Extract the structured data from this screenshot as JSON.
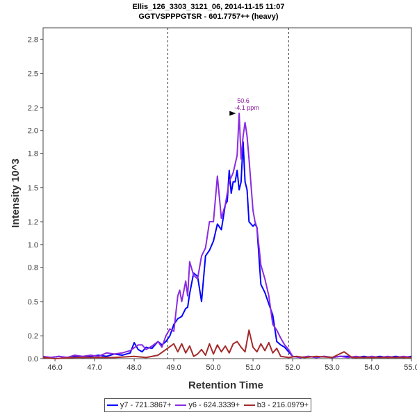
{
  "chart_data": {
    "type": "line",
    "title": "Ellis_126_3303_3121_06, 2014-11-15 11:07",
    "subtitle": "GGTVSPPPGTSR - 601.7757++ (heavy)",
    "xlabel": "Retention Time",
    "ylabel": "Intensity 10^3",
    "xlim": [
      45.7,
      55.0
    ],
    "ylim": [
      0,
      2.9
    ],
    "x_ticks": [
      "46.0",
      "47.0",
      "48.0",
      "49.0",
      "50.0",
      "51.0",
      "52.0",
      "53.0",
      "54.0",
      "55.0"
    ],
    "y_ticks": [
      "0.0",
      "0.2",
      "0.5",
      "0.8",
      "1.0",
      "1.2",
      "1.5",
      "1.8",
      "2.0",
      "2.2",
      "2.5",
      "2.8"
    ],
    "boundary_lines": [
      48.85,
      51.9
    ],
    "annotation": {
      "x": 50.6,
      "y": 2.15,
      "line1": "50.6",
      "line2": "-4.1 ppm"
    },
    "series": [
      {
        "name": "y7 - 721.3867+",
        "color": "#0000ff",
        "x": [
          45.7,
          45.9,
          46.1,
          46.3,
          46.5,
          46.7,
          46.9,
          47.1,
          47.3,
          47.5,
          47.7,
          47.9,
          48.0,
          48.1,
          48.2,
          48.3,
          48.45,
          48.6,
          48.7,
          48.8,
          48.9,
          49.0,
          49.1,
          49.2,
          49.3,
          49.35,
          49.4,
          49.5,
          49.6,
          49.7,
          49.8,
          49.9,
          50.0,
          50.1,
          50.2,
          50.3,
          50.35,
          50.4,
          50.45,
          50.5,
          50.55,
          50.6,
          50.65,
          50.7,
          50.75,
          50.8,
          50.85,
          50.9,
          51.0,
          51.05,
          51.1,
          51.2,
          51.3,
          51.4,
          51.5,
          51.6,
          51.7,
          51.8,
          51.9,
          52.0,
          52.2,
          52.4,
          52.6,
          52.8,
          53.0,
          53.2,
          53.4,
          53.6,
          53.8,
          54.0,
          54.2,
          54.4,
          54.6,
          54.8,
          55.0
        ],
        "values": [
          0.01,
          0.01,
          0.02,
          0.01,
          0.02,
          0.01,
          0.02,
          0.03,
          0.02,
          0.04,
          0.03,
          0.05,
          0.14,
          0.08,
          0.06,
          0.1,
          0.09,
          0.15,
          0.12,
          0.15,
          0.2,
          0.3,
          0.35,
          0.37,
          0.44,
          0.45,
          0.57,
          0.75,
          0.72,
          0.5,
          0.9,
          0.95,
          1.03,
          1.18,
          1.13,
          1.35,
          1.38,
          1.65,
          1.45,
          1.55,
          1.55,
          1.65,
          1.48,
          1.55,
          1.9,
          1.55,
          1.48,
          1.2,
          1.16,
          1.18,
          1.15,
          0.65,
          0.58,
          0.48,
          0.38,
          0.15,
          0.12,
          0.1,
          0.06,
          0.02,
          0.01,
          0.02,
          0.01,
          0.02,
          0.01,
          0.02,
          0.02,
          0.01,
          0.02,
          0.01,
          0.02,
          0.01,
          0.02,
          0.01,
          0.02
        ]
      },
      {
        "name": "y6 - 624.3339+",
        "color": "#8a2be2",
        "x": [
          45.7,
          45.9,
          46.1,
          46.3,
          46.5,
          46.7,
          46.9,
          47.1,
          47.3,
          47.5,
          47.7,
          47.9,
          48.1,
          48.2,
          48.3,
          48.45,
          48.6,
          48.7,
          48.8,
          48.9,
          49.0,
          49.1,
          49.15,
          49.2,
          49.3,
          49.35,
          49.4,
          49.5,
          49.6,
          49.7,
          49.8,
          49.9,
          50.0,
          50.1,
          50.2,
          50.3,
          50.4,
          50.5,
          50.6,
          50.65,
          50.7,
          50.75,
          50.8,
          50.85,
          50.9,
          51.0,
          51.05,
          51.1,
          51.2,
          51.3,
          51.4,
          51.5,
          51.6,
          51.7,
          51.8,
          51.9,
          52.0,
          52.2,
          52.4,
          52.6,
          52.8,
          53.0,
          53.2,
          53.4,
          53.6,
          53.8,
          54.0,
          54.2,
          54.4,
          54.6,
          54.8,
          55.0
        ],
        "values": [
          0.02,
          0.01,
          0.02,
          0.01,
          0.03,
          0.02,
          0.03,
          0.02,
          0.05,
          0.04,
          0.05,
          0.07,
          0.12,
          0.12,
          0.08,
          0.11,
          0.15,
          0.1,
          0.2,
          0.26,
          0.24,
          0.55,
          0.6,
          0.5,
          0.68,
          0.55,
          0.85,
          0.73,
          0.7,
          0.9,
          0.97,
          1.2,
          1.2,
          1.6,
          1.23,
          1.35,
          1.55,
          1.63,
          1.78,
          2.15,
          1.75,
          1.95,
          2.07,
          1.95,
          1.75,
          1.3,
          1.2,
          1.15,
          0.82,
          0.7,
          0.55,
          0.3,
          0.25,
          0.18,
          0.12,
          0.08,
          0.02,
          0.01,
          0.02,
          0.01,
          0.02,
          0.01,
          0.02,
          0.01,
          0.02,
          0.01,
          0.02,
          0.01,
          0.02,
          0.01,
          0.02,
          0.01
        ]
      },
      {
        "name": "b3 - 216.0979+",
        "color": "#a52a2a",
        "x": [
          45.7,
          46.0,
          46.5,
          47.0,
          47.5,
          48.0,
          48.3,
          48.6,
          48.8,
          49.0,
          49.1,
          49.2,
          49.3,
          49.4,
          49.5,
          49.6,
          49.7,
          49.8,
          49.9,
          50.0,
          50.1,
          50.2,
          50.3,
          50.4,
          50.5,
          50.6,
          50.7,
          50.8,
          50.9,
          51.0,
          51.1,
          51.2,
          51.3,
          51.4,
          51.5,
          51.6,
          51.7,
          51.9,
          52.1,
          52.3,
          52.6,
          53.0,
          53.3,
          53.5,
          54.0,
          54.5,
          55.0
        ],
        "values": [
          0.01,
          0.0,
          0.01,
          0.01,
          0.01,
          0.02,
          0.01,
          0.03,
          0.08,
          0.13,
          0.06,
          0.13,
          0.05,
          0.11,
          0.02,
          0.04,
          0.08,
          0.03,
          0.13,
          0.04,
          0.12,
          0.06,
          0.11,
          0.05,
          0.13,
          0.15,
          0.1,
          0.06,
          0.25,
          0.1,
          0.06,
          0.13,
          0.07,
          0.14,
          0.05,
          0.09,
          0.02,
          0.01,
          0.02,
          0.01,
          0.02,
          0.01,
          0.06,
          0.01,
          0.01,
          0.01,
          0.01
        ]
      }
    ]
  }
}
